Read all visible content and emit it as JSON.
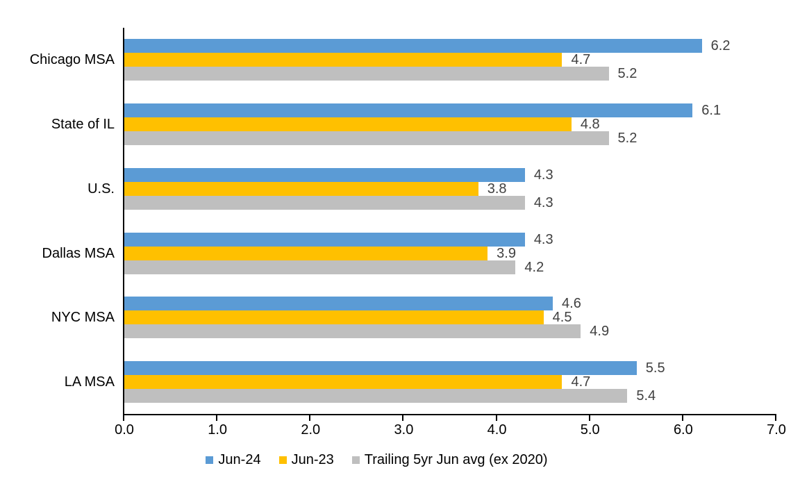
{
  "chart_data": {
    "type": "bar",
    "orientation": "horizontal",
    "title": "",
    "categories": [
      "Chicago MSA",
      "State of IL",
      "U.S.",
      "Dallas MSA",
      "NYC MSA",
      "LA MSA"
    ],
    "series": [
      {
        "name": "Jun-24",
        "color": "#5B9BD5",
        "values": [
          6.2,
          6.1,
          4.3,
          4.3,
          4.6,
          5.5
        ]
      },
      {
        "name": "Jun-23",
        "color": "#FFC000",
        "values": [
          4.7,
          4.8,
          3.8,
          3.9,
          4.5,
          4.7
        ]
      },
      {
        "name": "Trailing 5yr Jun avg (ex 2020)",
        "color": "#BFBFBF",
        "values": [
          5.2,
          5.2,
          4.3,
          4.2,
          4.9,
          5.4
        ]
      }
    ],
    "x_axis": {
      "min": 0,
      "max": 7,
      "tick_interval": 1,
      "tick_labels": [
        "0.0",
        "1.0",
        "2.0",
        "3.0",
        "4.0",
        "5.0",
        "6.0",
        "7.0"
      ]
    },
    "data_labels": {
      "show": true,
      "decimals": 1,
      "color": "#404040"
    },
    "legend": {
      "position": "bottom",
      "entries": [
        "Jun-24",
        "Jun-23",
        "Trailing 5yr Jun avg (ex 2020)"
      ]
    },
    "grid": false,
    "axis_color": "#000000",
    "background_color": "#FFFFFF"
  }
}
